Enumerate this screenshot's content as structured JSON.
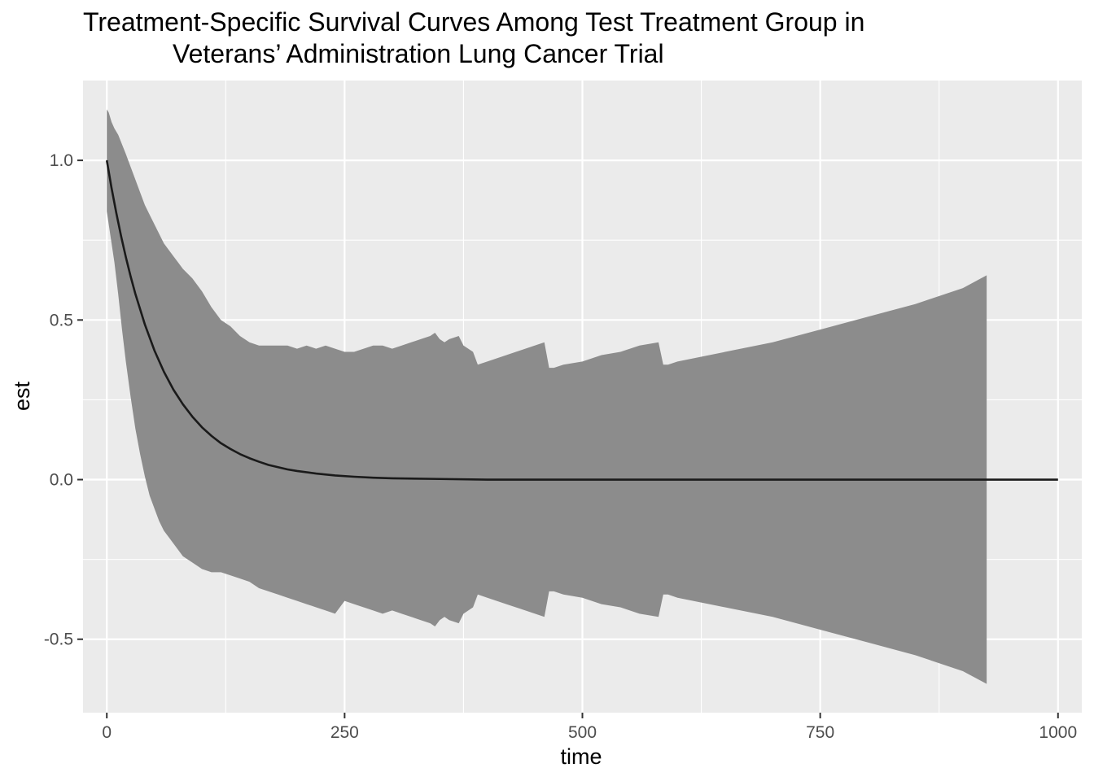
{
  "chart_data": {
    "type": "line",
    "title_lines": [
      "Treatment-Specific Survival Curves Among Test Treatment Group in",
      "Veterans’ Administration Lung Cancer Trial"
    ],
    "xlabel": "time",
    "ylabel": "est",
    "xlim": [
      -25,
      1025
    ],
    "ylim": [
      -0.73,
      1.25
    ],
    "x_ticks": [
      0,
      250,
      500,
      750,
      1000
    ],
    "x_tick_labels": [
      "0",
      "250",
      "500",
      "750",
      "1000"
    ],
    "y_ticks": [
      -0.5,
      0.0,
      0.5,
      1.0
    ],
    "y_tick_labels": [
      "-0.5",
      "0.0",
      "0.5",
      "1.0"
    ],
    "grid": true,
    "colors": {
      "panel": "#ebebeb",
      "grid": "#ffffff",
      "line": "#1a1a1a",
      "ribbon": "#8c8c8c"
    },
    "series": [
      {
        "kind": "line",
        "x": [
          0,
          5,
          10,
          15,
          20,
          25,
          30,
          40,
          50,
          60,
          70,
          80,
          90,
          100,
          110,
          120,
          130,
          140,
          150,
          160,
          170,
          180,
          190,
          200,
          220,
          240,
          260,
          280,
          300,
          350,
          400,
          500,
          600,
          700,
          800,
          900,
          1000
        ],
        "y": [
          1.0,
          0.913,
          0.835,
          0.763,
          0.697,
          0.637,
          0.582,
          0.486,
          0.405,
          0.338,
          0.282,
          0.236,
          0.197,
          0.164,
          0.137,
          0.114,
          0.096,
          0.08,
          0.067,
          0.056,
          0.046,
          0.039,
          0.032,
          0.027,
          0.019,
          0.013,
          0.009,
          0.006,
          0.004,
          0.002,
          0.0,
          0.0,
          0.0,
          0.0,
          0.0,
          0.0,
          0.0
        ]
      },
      {
        "kind": "ribbon",
        "x": [
          0,
          2,
          5,
          8,
          12,
          16,
          20,
          25,
          30,
          35,
          40,
          45,
          50,
          55,
          60,
          65,
          70,
          75,
          80,
          90,
          100,
          110,
          120,
          130,
          140,
          150,
          160,
          170,
          180,
          190,
          200,
          210,
          220,
          230,
          240,
          250,
          260,
          270,
          280,
          290,
          300,
          310,
          320,
          330,
          340,
          345,
          350,
          355,
          360,
          370,
          375,
          385,
          390,
          400,
          420,
          440,
          460,
          465,
          470,
          480,
          500,
          520,
          540,
          560,
          580,
          585,
          590,
          600,
          650,
          700,
          750,
          800,
          850,
          900,
          925
        ],
        "upper": [
          1.16,
          1.15,
          1.12,
          1.1,
          1.08,
          1.05,
          1.02,
          0.98,
          0.94,
          0.9,
          0.86,
          0.83,
          0.8,
          0.77,
          0.74,
          0.72,
          0.7,
          0.68,
          0.66,
          0.63,
          0.59,
          0.54,
          0.5,
          0.48,
          0.45,
          0.43,
          0.42,
          0.42,
          0.42,
          0.42,
          0.41,
          0.42,
          0.41,
          0.42,
          0.41,
          0.4,
          0.4,
          0.41,
          0.42,
          0.42,
          0.41,
          0.42,
          0.43,
          0.44,
          0.45,
          0.46,
          0.44,
          0.43,
          0.44,
          0.45,
          0.42,
          0.4,
          0.36,
          0.37,
          0.39,
          0.41,
          0.43,
          0.35,
          0.35,
          0.36,
          0.37,
          0.39,
          0.4,
          0.42,
          0.43,
          0.36,
          0.36,
          0.37,
          0.4,
          0.43,
          0.47,
          0.51,
          0.55,
          0.6,
          0.64
        ],
        "lower": [
          0.84,
          0.8,
          0.74,
          0.68,
          0.58,
          0.47,
          0.37,
          0.26,
          0.16,
          0.08,
          0.01,
          -0.05,
          -0.09,
          -0.13,
          -0.16,
          -0.18,
          -0.2,
          -0.22,
          -0.24,
          -0.26,
          -0.28,
          -0.29,
          -0.29,
          -0.3,
          -0.31,
          -0.32,
          -0.34,
          -0.35,
          -0.36,
          -0.37,
          -0.38,
          -0.39,
          -0.4,
          -0.41,
          -0.42,
          -0.38,
          -0.39,
          -0.4,
          -0.41,
          -0.42,
          -0.41,
          -0.42,
          -0.43,
          -0.44,
          -0.45,
          -0.46,
          -0.44,
          -0.43,
          -0.44,
          -0.45,
          -0.42,
          -0.4,
          -0.36,
          -0.37,
          -0.39,
          -0.41,
          -0.43,
          -0.35,
          -0.35,
          -0.36,
          -0.37,
          -0.39,
          -0.4,
          -0.42,
          -0.43,
          -0.36,
          -0.36,
          -0.37,
          -0.4,
          -0.43,
          -0.47,
          -0.51,
          -0.55,
          -0.6,
          -0.64
        ]
      }
    ]
  }
}
